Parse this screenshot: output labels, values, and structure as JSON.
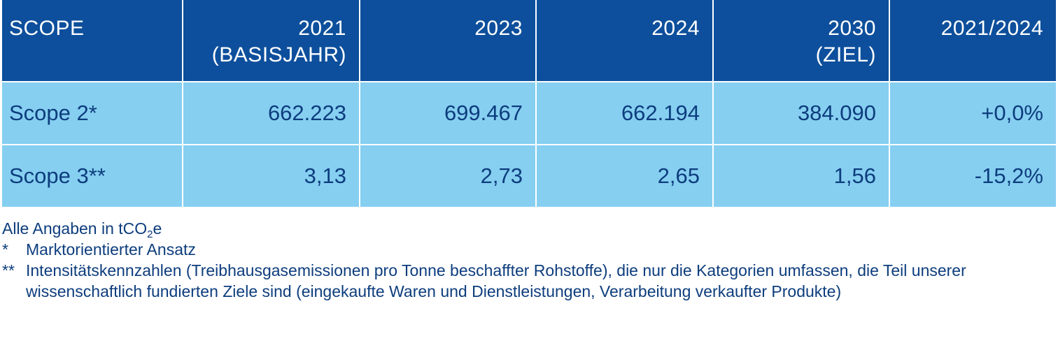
{
  "header": {
    "scope": "SCOPE",
    "y2021_line1": "2021",
    "y2021_line2": "(BASISJAHR)",
    "y2023": "2023",
    "y2024": "2024",
    "y2030_line1": "2030",
    "y2030_line2": "(ZIEL)",
    "change": "2021/2024"
  },
  "rows": [
    {
      "scope": "Scope 2*",
      "v2021": "662.223",
      "v2023": "699.467",
      "v2024": "662.194",
      "v2030": "384.090",
      "change": "+0,0%"
    },
    {
      "scope": "Scope 3**",
      "v2021": "3,13",
      "v2023": "2,73",
      "v2024": "2,65",
      "v2030": "1,56",
      "change": "-15,2%"
    }
  ],
  "notes": {
    "unit_prefix": "Alle Angaben in tCO",
    "unit_sub": "2",
    "unit_suffix": "e",
    "mark1": "*",
    "text1": "Marktorientierter Ansatz",
    "mark2": "**",
    "text2": "Intensitätskennzahlen (Treibhausgasemissionen pro Tonne beschaffter Rohstoffe), die nur die Kategorien umfassen, die Teil unserer wissenschaftlich fundierten Ziele sind (eingekaufte Waren und Dienstleistungen, Verarbeitung verkaufter Produkte)"
  },
  "colors": {
    "header_bg": "#0d4f9c",
    "row_bg": "#86cff1",
    "text_dark": "#0d3d7d"
  }
}
